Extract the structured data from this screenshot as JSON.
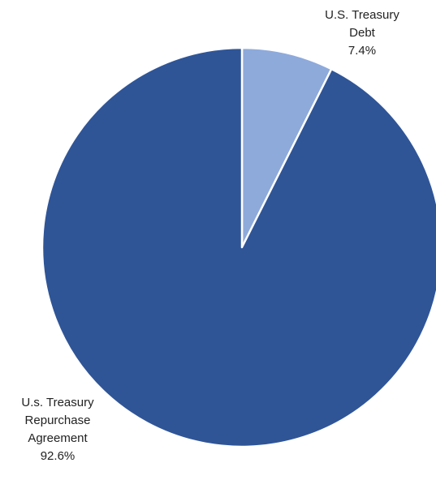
{
  "chart_data": {
    "type": "pie",
    "start_angle_deg": 0,
    "direction": "clockwise",
    "slices": [
      {
        "name_lines": [
          "U.S. Treasury",
          "Debt"
        ],
        "percent_label": "7.4%",
        "value": 7.4,
        "color": "#8eaadb"
      },
      {
        "name_lines": [
          "U.s. Treasury",
          "Repurchase",
          "Agreement"
        ],
        "percent_label": "92.6%",
        "value": 92.6,
        "color": "#2f5597"
      }
    ],
    "border_color": "#ffffff"
  }
}
